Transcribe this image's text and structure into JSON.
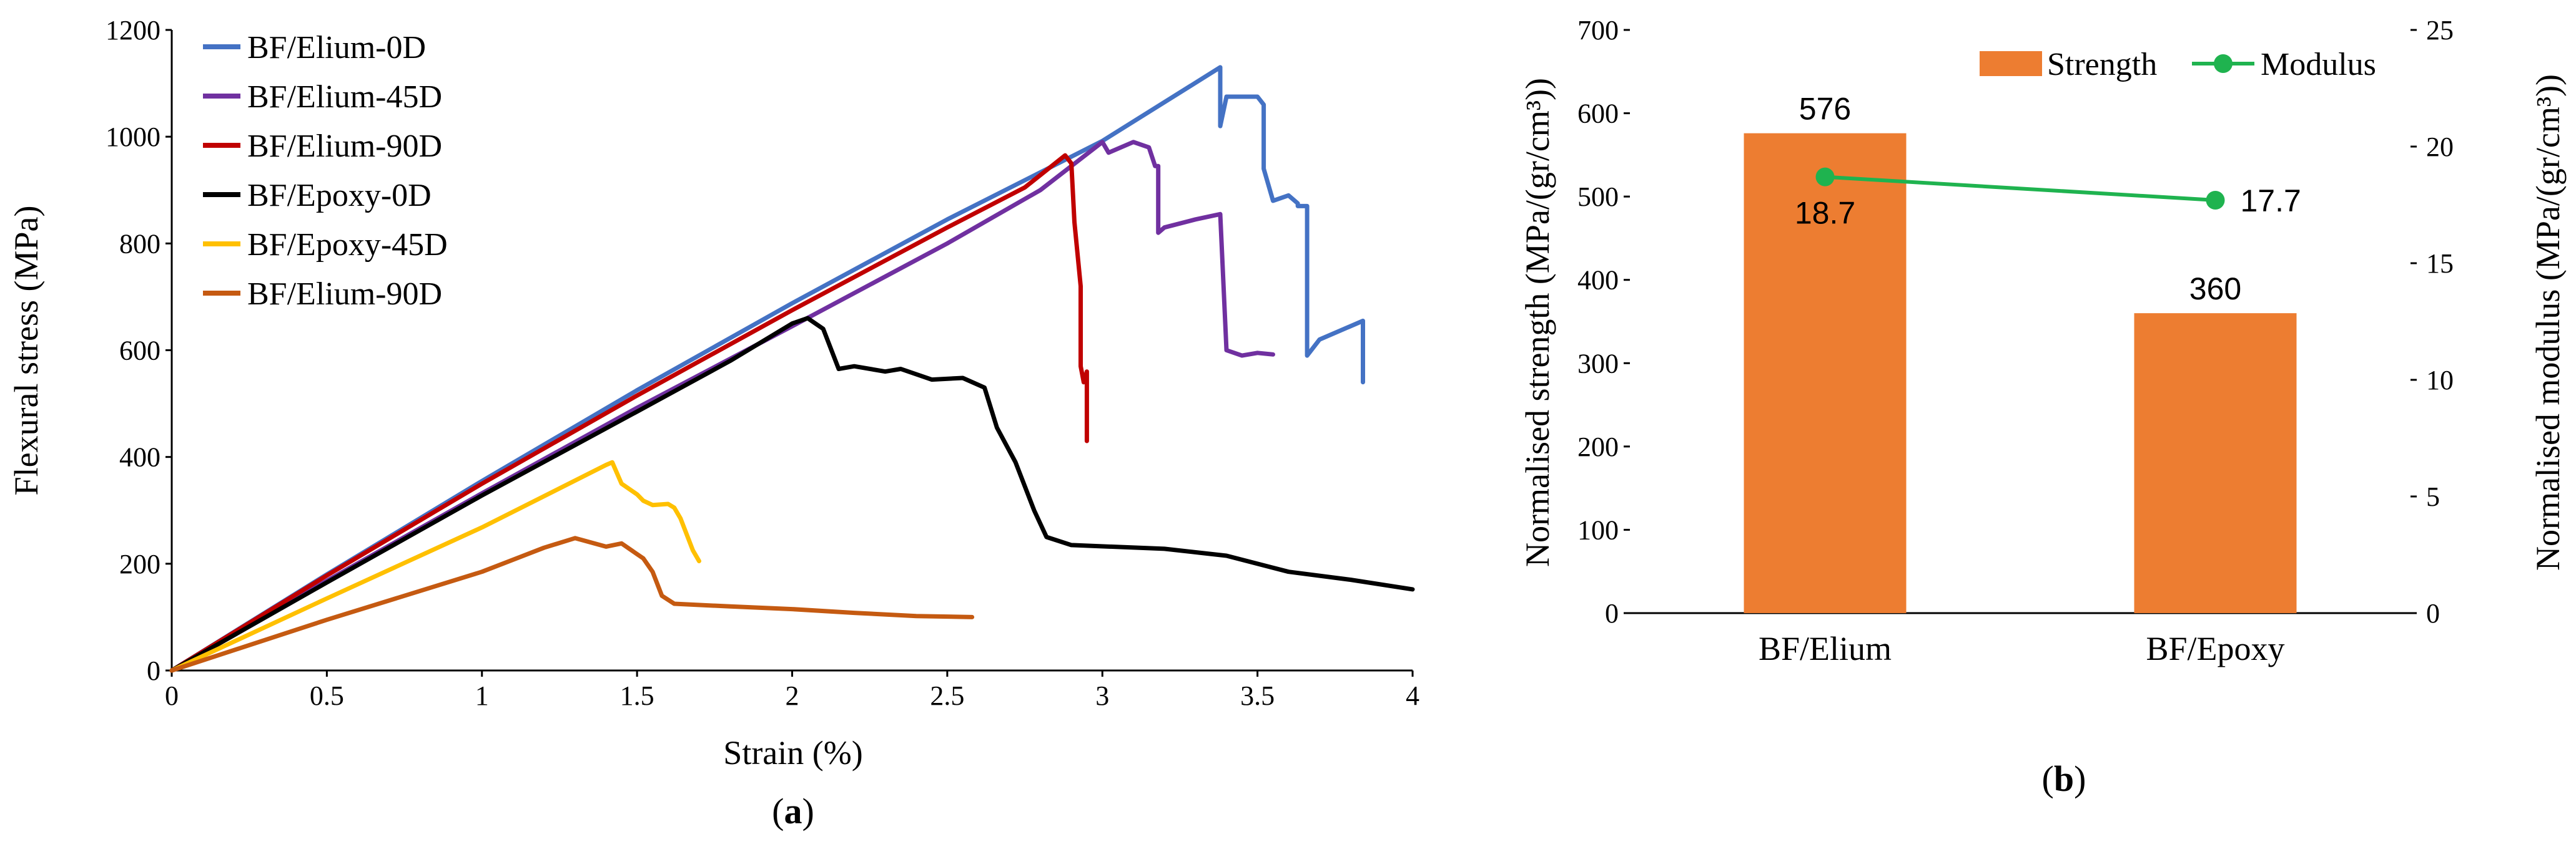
{
  "chart_data": [
    {
      "type": "line",
      "title": "",
      "xlabel": "Strain (%)",
      "ylabel": "Flexural stress (MPa)",
      "xlim": [
        0,
        4
      ],
      "ylim": [
        0,
        1200
      ],
      "xticks": [
        0,
        0.5,
        1,
        1.5,
        2,
        2.5,
        3,
        3.5,
        4
      ],
      "xtick_labels": [
        "0",
        "0.5",
        "1",
        "1.5",
        "2",
        "2.5",
        "3",
        "3.5",
        "4"
      ],
      "yticks": [
        0,
        200,
        400,
        600,
        800,
        1000,
        1200
      ],
      "ytick_labels": [
        "0",
        "200",
        "400",
        "600",
        "800",
        "1000",
        "1200"
      ],
      "legend_position": "top-left",
      "panel_label": "a",
      "series": [
        {
          "name": "BF/Elium-0D",
          "color": "#4472C4",
          "points": [
            [
              0,
              0
            ],
            [
              0.5,
              180
            ],
            [
              1,
              355
            ],
            [
              1.5,
              525
            ],
            [
              2,
              688
            ],
            [
              2.5,
              845
            ],
            [
              3,
              992
            ],
            [
              3.38,
              1130
            ],
            [
              3.38,
              1020
            ],
            [
              3.4,
              1075
            ],
            [
              3.5,
              1075
            ],
            [
              3.52,
              1060
            ],
            [
              3.52,
              940
            ],
            [
              3.55,
              880
            ],
            [
              3.6,
              890
            ],
            [
              3.63,
              875
            ],
            [
              3.63,
              870
            ],
            [
              3.66,
              870
            ],
            [
              3.66,
              590
            ],
            [
              3.7,
              620
            ],
            [
              3.8,
              645
            ],
            [
              3.84,
              655
            ],
            [
              3.84,
              540
            ]
          ]
        },
        {
          "name": "BF/Elium-45D",
          "color": "#7030A0",
          "points": [
            [
              0,
              0
            ],
            [
              0.5,
              168
            ],
            [
              1,
              332
            ],
            [
              1.5,
              492
            ],
            [
              2,
              645
            ],
            [
              2.5,
              800
            ],
            [
              2.8,
              900
            ],
            [
              3.0,
              990
            ],
            [
              3.02,
              970
            ],
            [
              3.1,
              990
            ],
            [
              3.15,
              980
            ],
            [
              3.17,
              945
            ],
            [
              3.18,
              945
            ],
            [
              3.18,
              820
            ],
            [
              3.2,
              830
            ],
            [
              3.3,
              845
            ],
            [
              3.38,
              855
            ],
            [
              3.4,
              600
            ],
            [
              3.45,
              590
            ],
            [
              3.5,
              595
            ],
            [
              3.55,
              592
            ]
          ]
        },
        {
          "name": "BF/Elium-90D",
          "color": "#C00000",
          "points": [
            [
              0,
              0
            ],
            [
              0.5,
              178
            ],
            [
              1,
              350
            ],
            [
              1.5,
              515
            ],
            [
              2,
              675
            ],
            [
              2.5,
              830
            ],
            [
              2.75,
              905
            ],
            [
              2.88,
              965
            ],
            [
              2.9,
              950
            ],
            [
              2.91,
              840
            ],
            [
              2.93,
              720
            ],
            [
              2.93,
              570
            ],
            [
              2.94,
              540
            ],
            [
              2.95,
              560
            ],
            [
              2.95,
              430
            ]
          ]
        },
        {
          "name": "BF/Epoxy-0D",
          "color": "#000000",
          "points": [
            [
              0,
              0
            ],
            [
              0.5,
              165
            ],
            [
              1,
              328
            ],
            [
              1.5,
              485
            ],
            [
              1.8,
              580
            ],
            [
              2.0,
              650
            ],
            [
              2.05,
              660
            ],
            [
              2.1,
              640
            ],
            [
              2.15,
              565
            ],
            [
              2.2,
              570
            ],
            [
              2.3,
              560
            ],
            [
              2.35,
              565
            ],
            [
              2.45,
              545
            ],
            [
              2.55,
              548
            ],
            [
              2.62,
              530
            ],
            [
              2.66,
              455
            ],
            [
              2.72,
              390
            ],
            [
              2.78,
              300
            ],
            [
              2.82,
              250
            ],
            [
              2.9,
              235
            ],
            [
              3.2,
              228
            ],
            [
              3.4,
              215
            ],
            [
              3.6,
              185
            ],
            [
              3.8,
              170
            ],
            [
              4.0,
              152
            ]
          ]
        },
        {
          "name": "BF/Epoxy-45D",
          "color": "#FFC000",
          "points": [
            [
              0,
              0
            ],
            [
              0.5,
              135
            ],
            [
              1,
              268
            ],
            [
              1.4,
              385
            ],
            [
              1.42,
              390
            ],
            [
              1.45,
              350
            ],
            [
              1.5,
              330
            ],
            [
              1.52,
              318
            ],
            [
              1.55,
              310
            ],
            [
              1.6,
              312
            ],
            [
              1.62,
              305
            ],
            [
              1.64,
              285
            ],
            [
              1.68,
              225
            ],
            [
              1.7,
              205
            ]
          ]
        },
        {
          "name": "BF/Elium-90D",
          "color": "#C55A11",
          "points": [
            [
              0,
              0
            ],
            [
              0.5,
              95
            ],
            [
              1,
              185
            ],
            [
              1.2,
              230
            ],
            [
              1.3,
              248
            ],
            [
              1.4,
              232
            ],
            [
              1.45,
              238
            ],
            [
              1.52,
              210
            ],
            [
              1.55,
              185
            ],
            [
              1.58,
              140
            ],
            [
              1.62,
              125
            ],
            [
              1.8,
              120
            ],
            [
              2.0,
              115
            ],
            [
              2.2,
              108
            ],
            [
              2.4,
              102
            ],
            [
              2.58,
              100
            ]
          ]
        }
      ]
    },
    {
      "type": "bar",
      "title": "",
      "xlabel": "",
      "ylabel": "Normalised strength (MPa/(gr/cm³))",
      "y2label": "Normalised modulus (MPa/(gr/cm³))",
      "categories": [
        "BF/Elium",
        "BF/Epoxy"
      ],
      "ylim": [
        0,
        700
      ],
      "y2lim": [
        0,
        25
      ],
      "yticks": [
        0,
        100,
        200,
        300,
        400,
        500,
        600,
        700
      ],
      "ytick_labels": [
        "0",
        "100",
        "200",
        "300",
        "400",
        "500",
        "600",
        "700"
      ],
      "y2ticks": [
        0,
        5,
        10,
        15,
        20,
        25
      ],
      "y2tick_labels": [
        "0",
        "5",
        "10",
        "15",
        "20",
        "25"
      ],
      "legend_position": "top-right",
      "panel_label": "b",
      "series": [
        {
          "name": "Strength",
          "type": "bar",
          "axis": "left",
          "color": "#ED7D31",
          "values": [
            576,
            360
          ],
          "labels": [
            "576",
            "360"
          ]
        },
        {
          "name": "Modulus",
          "type": "line",
          "axis": "right",
          "color": "#1FB34F",
          "values": [
            18.7,
            17.7
          ],
          "labels": [
            "18.7",
            "17.7"
          ]
        }
      ]
    }
  ]
}
